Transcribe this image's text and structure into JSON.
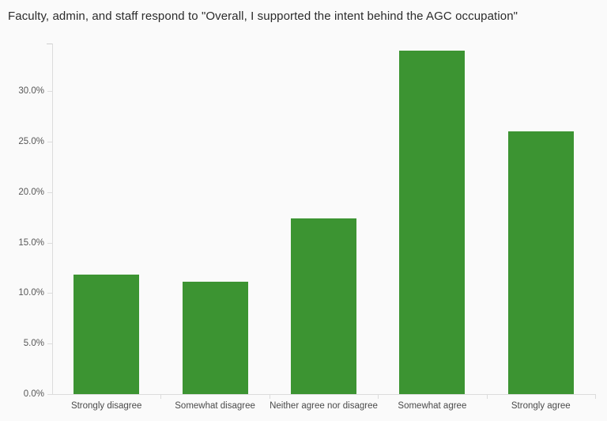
{
  "chart_data": {
    "type": "bar",
    "title": "Faculty, admin, and staff respond to \"Overall, I supported the intent behind the AGC occupation\"",
    "categories": [
      "Strongly disagree",
      "Somewhat disagree",
      "Neither agree nor disagree",
      "Somewhat agree",
      "Strongly agree"
    ],
    "values": [
      11.8,
      11.1,
      17.4,
      34.0,
      26.0
    ],
    "value_unit": "%",
    "xlabel": "",
    "ylabel": "",
    "ylim": [
      0,
      34.7
    ],
    "yticks": [
      {
        "value": 0,
        "label": "0.0%"
      },
      {
        "value": 5,
        "label": "5.0%"
      },
      {
        "value": 10,
        "label": "10.0%"
      },
      {
        "value": 15,
        "label": "15.0%"
      },
      {
        "value": 20,
        "label": "20.0%"
      },
      {
        "value": 25,
        "label": "25.0%"
      },
      {
        "value": 30,
        "label": "30.0%"
      }
    ],
    "grid": false,
    "legend": false,
    "bar_color": "#3c9432"
  },
  "colors": {
    "background": "#fafafa",
    "bar": "#3c9432",
    "axis": "#dcdcdc",
    "axis_cap": "#cfcfcf",
    "ytick_label": "#575757",
    "category_label": "#4a4a4a",
    "title": "#2b2b2b"
  }
}
